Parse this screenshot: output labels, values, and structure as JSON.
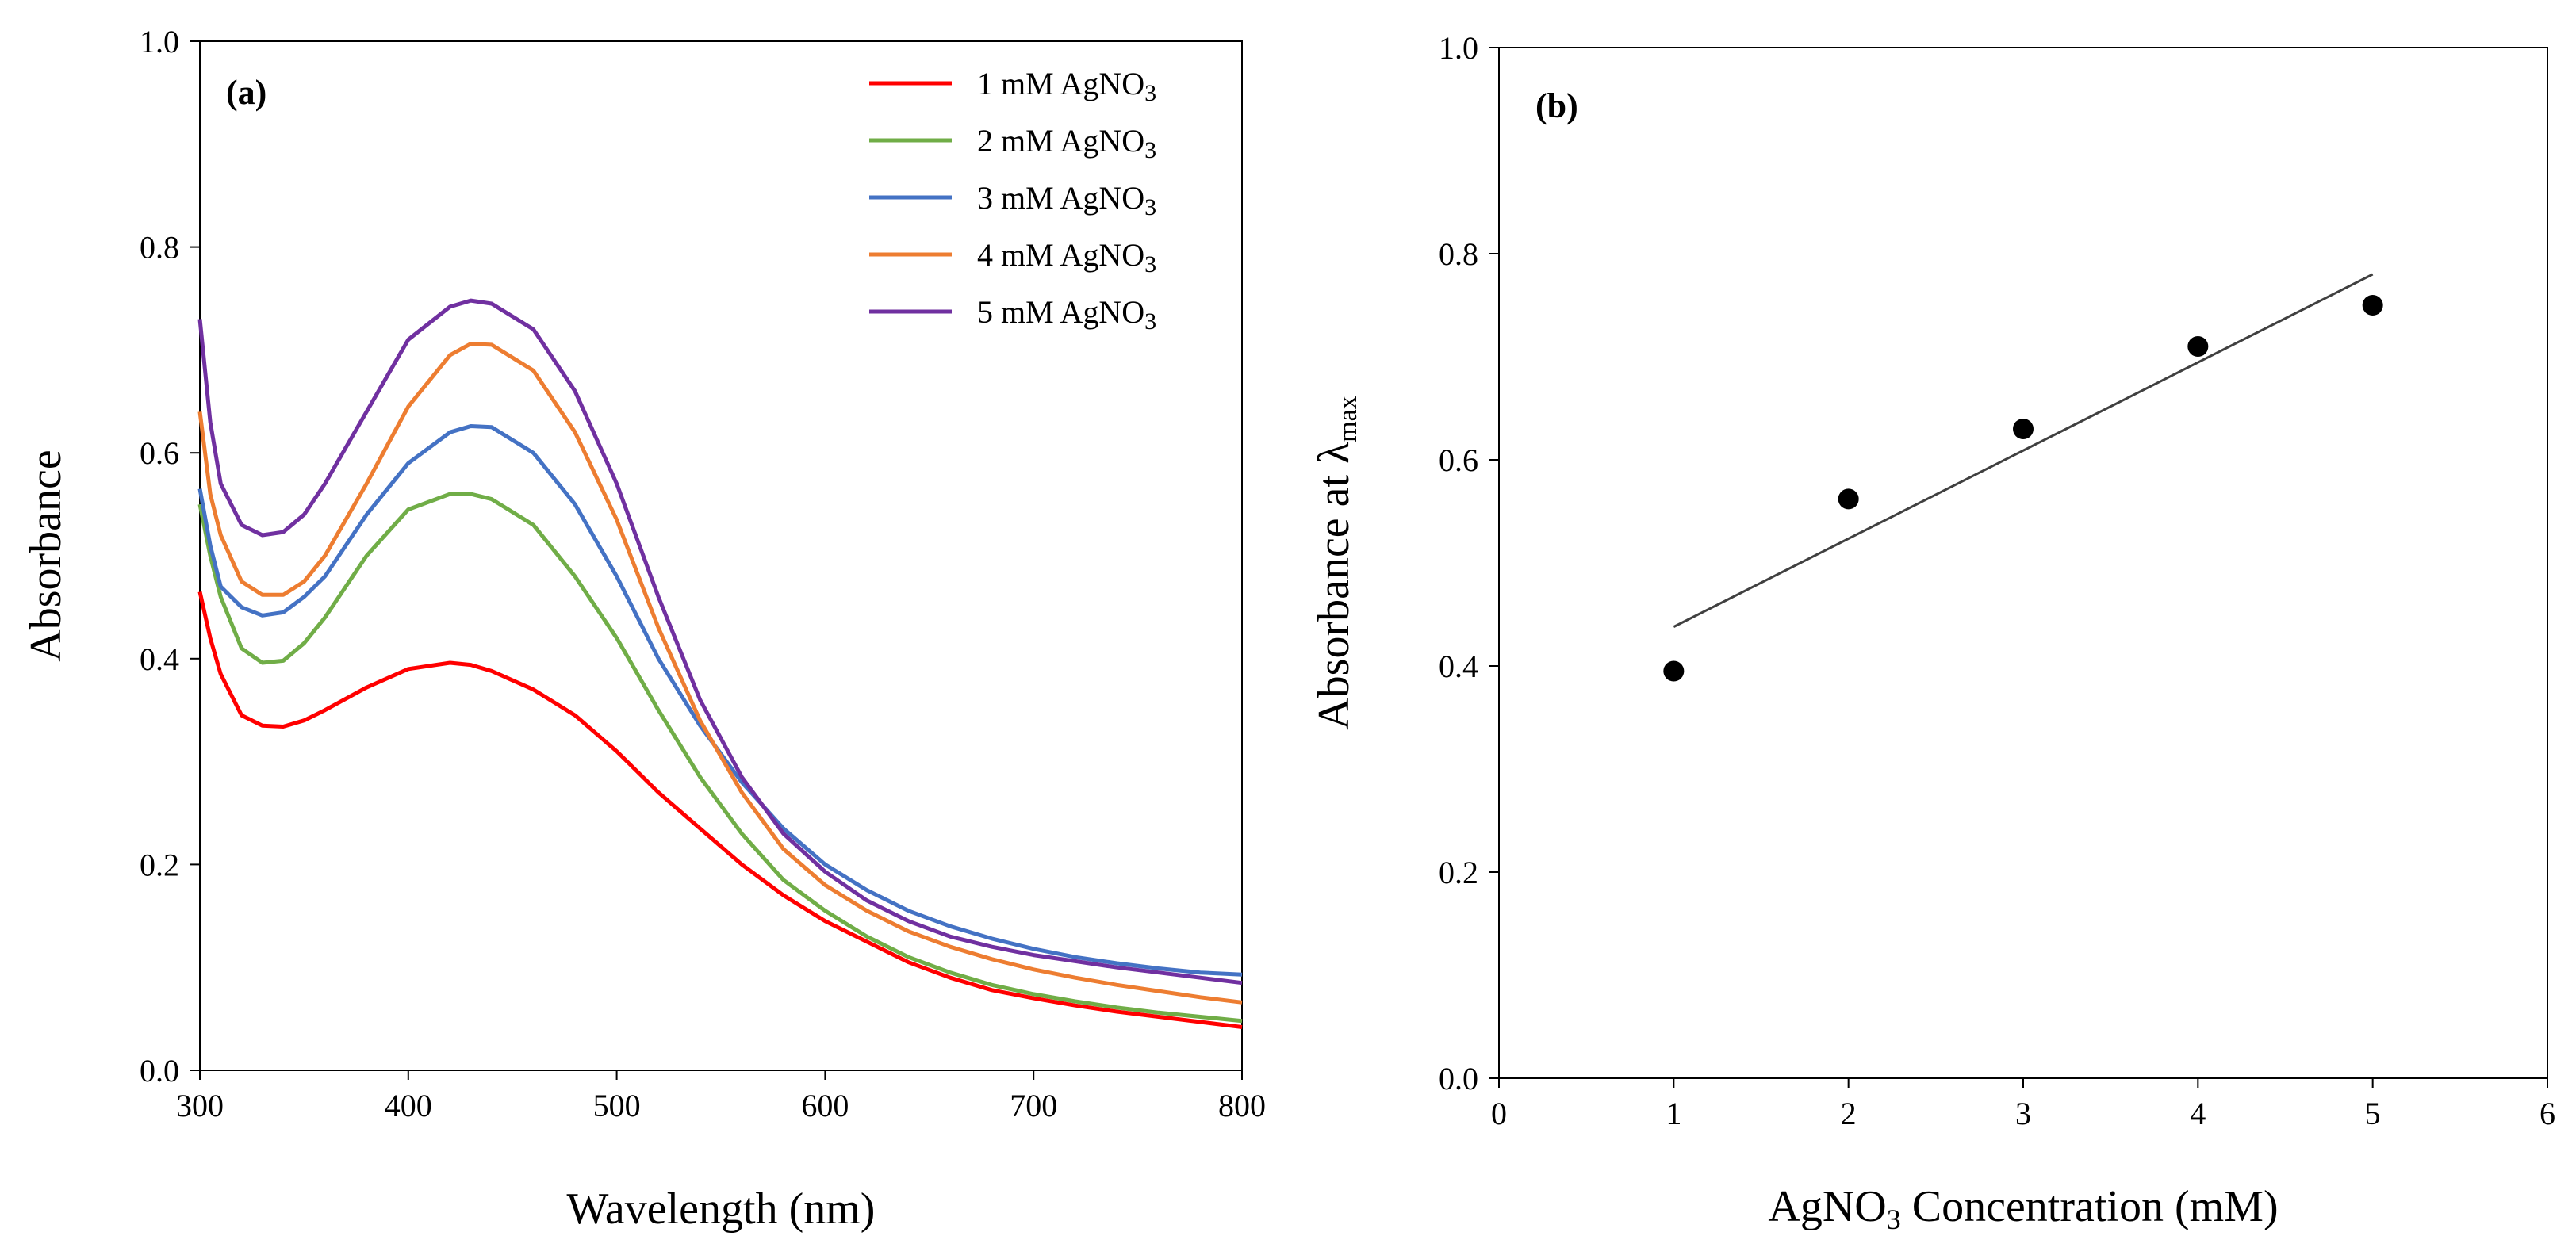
{
  "chart_data": [
    {
      "type": "line",
      "panel_label": "(a)",
      "xlabel": "Wavelength (nm)",
      "ylabel": "Absorbance",
      "xlim": [
        300,
        800
      ],
      "ylim": [
        0,
        1.0
      ],
      "xticks": [
        300,
        400,
        500,
        600,
        700,
        800
      ],
      "xtick_labels": [
        "300",
        "400",
        "500",
        "600",
        "700",
        "800"
      ],
      "yticks": [
        0,
        0.2,
        0.4,
        0.6,
        0.8,
        1.0
      ],
      "ytick_labels": [
        "0.0",
        "0.2",
        "0.4",
        "0.6",
        "0.8",
        "1.0"
      ],
      "grid": false,
      "legend_position": "top-right",
      "x": [
        300,
        305,
        310,
        320,
        330,
        340,
        350,
        360,
        380,
        400,
        420,
        430,
        440,
        460,
        480,
        500,
        520,
        540,
        560,
        580,
        600,
        620,
        640,
        660,
        680,
        700,
        720,
        740,
        760,
        780,
        800
      ],
      "series": [
        {
          "name": "1 mM AgNO₃",
          "legend_prefix": "1 mM AgNO",
          "legend_sub": "3",
          "color": "#ff0000",
          "values": [
            0.465,
            0.42,
            0.385,
            0.345,
            0.335,
            0.334,
            0.34,
            0.35,
            0.372,
            0.39,
            0.396,
            0.394,
            0.388,
            0.37,
            0.345,
            0.31,
            0.27,
            0.235,
            0.2,
            0.17,
            0.145,
            0.125,
            0.105,
            0.09,
            0.078,
            0.07,
            0.063,
            0.057,
            0.052,
            0.047,
            0.042
          ]
        },
        {
          "name": "2 mM AgNO₃",
          "legend_prefix": "2 mM AgNO",
          "legend_sub": "3",
          "color": "#70ad47",
          "values": [
            0.55,
            0.5,
            0.46,
            0.41,
            0.396,
            0.398,
            0.415,
            0.44,
            0.5,
            0.545,
            0.56,
            0.56,
            0.555,
            0.53,
            0.48,
            0.42,
            0.35,
            0.285,
            0.23,
            0.185,
            0.155,
            0.13,
            0.11,
            0.095,
            0.083,
            0.074,
            0.067,
            0.061,
            0.056,
            0.052,
            0.048
          ]
        },
        {
          "name": "3 mM AgNO₃",
          "legend_prefix": "3 mM AgNO",
          "legend_sub": "3",
          "color": "#4472c4",
          "values": [
            0.565,
            0.51,
            0.47,
            0.45,
            0.442,
            0.445,
            0.46,
            0.48,
            0.54,
            0.59,
            0.62,
            0.626,
            0.625,
            0.6,
            0.55,
            0.48,
            0.4,
            0.335,
            0.28,
            0.235,
            0.2,
            0.175,
            0.155,
            0.14,
            0.128,
            0.118,
            0.11,
            0.104,
            0.099,
            0.095,
            0.093
          ]
        },
        {
          "name": "4 mM AgNO₃",
          "legend_prefix": "4 mM AgNO",
          "legend_sub": "3",
          "color": "#ed7d31",
          "values": [
            0.64,
            0.56,
            0.52,
            0.475,
            0.462,
            0.462,
            0.475,
            0.5,
            0.57,
            0.645,
            0.695,
            0.706,
            0.705,
            0.68,
            0.62,
            0.535,
            0.43,
            0.34,
            0.27,
            0.215,
            0.18,
            0.155,
            0.135,
            0.12,
            0.108,
            0.098,
            0.09,
            0.083,
            0.077,
            0.071,
            0.066
          ]
        },
        {
          "name": "5 mM AgNO₃",
          "legend_prefix": "5 mM AgNO",
          "legend_sub": "3",
          "color": "#7030a0",
          "values": [
            0.73,
            0.63,
            0.57,
            0.53,
            0.52,
            0.523,
            0.54,
            0.57,
            0.64,
            0.71,
            0.742,
            0.748,
            0.745,
            0.72,
            0.66,
            0.57,
            0.46,
            0.36,
            0.285,
            0.23,
            0.193,
            0.165,
            0.145,
            0.13,
            0.12,
            0.112,
            0.106,
            0.1,
            0.095,
            0.09,
            0.085
          ]
        }
      ]
    },
    {
      "type": "scatter",
      "panel_label": "(b)",
      "xlabel_prefix": "AgNO",
      "xlabel_sub": "3",
      "xlabel_suffix": " Concentration (mM)",
      "ylabel_prefix": "Absorbance at λ",
      "ylabel_sub": "max",
      "xlim": [
        0,
        6
      ],
      "ylim": [
        0,
        1.0
      ],
      "xticks": [
        0,
        1,
        2,
        3,
        4,
        5,
        6
      ],
      "xtick_labels": [
        "0",
        "1",
        "2",
        "3",
        "4",
        "5",
        "6"
      ],
      "yticks": [
        0,
        0.2,
        0.4,
        0.6,
        0.8,
        1.0
      ],
      "ytick_labels": [
        "0.0",
        "0.2",
        "0.4",
        "0.6",
        "0.8",
        "1.0"
      ],
      "grid": false,
      "points": {
        "x": [
          1,
          2,
          3,
          4,
          5
        ],
        "y": [
          0.395,
          0.562,
          0.63,
          0.71,
          0.75
        ]
      },
      "trendline": {
        "x": [
          1,
          5
        ],
        "y": [
          0.438,
          0.78
        ]
      },
      "marker_color": "#000000",
      "line_color": "#404040"
    }
  ]
}
